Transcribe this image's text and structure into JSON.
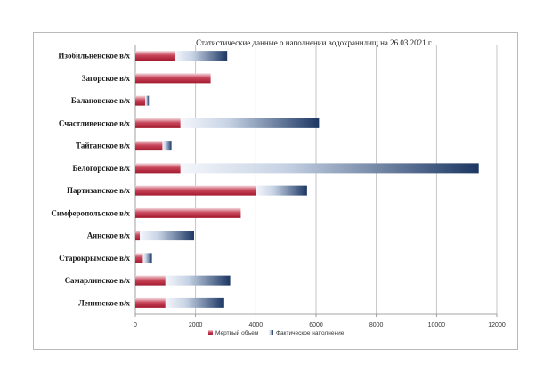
{
  "chart_data": {
    "type": "bar",
    "orientation": "horizontal",
    "stacked": true,
    "title": "Статистические данные о наполнении водохранилищ на 26.03.2021 г.",
    "categories": [
      "Изобильненское в/х",
      "Загорское в/х",
      "Балановское в/х",
      "Счастливенское в/х",
      "Тайганское в/х",
      "Белогорское в/х",
      "Партизанское в/х",
      "Симферопольское в/х",
      "Аянское в/х",
      "Старокрымское в/х",
      "Самарлинское в/х",
      "Ленинское в/х"
    ],
    "series": [
      {
        "name": "Мертвый объем",
        "values": [
          1300,
          2500,
          330,
          1500,
          900,
          1500,
          4000,
          3500,
          150,
          250,
          1000,
          1000
        ]
      },
      {
        "name": "Фактическое наполнение",
        "values": [
          1750,
          0,
          120,
          4600,
          300,
          9900,
          1700,
          0,
          1800,
          300,
          2150,
          1950
        ]
      }
    ],
    "xlim": [
      0,
      12000
    ],
    "xticks": [
      "0",
      "2000",
      "4000",
      "6000",
      "8000",
      "10000",
      "12000"
    ],
    "grid": "vertical",
    "legend_position": "bottom",
    "colors": {
      "dead_dark": "#a3192e",
      "dead_light": "#f3d9dd",
      "fill_light": "#eef2f8",
      "fill_dark": "#1c3763"
    }
  }
}
